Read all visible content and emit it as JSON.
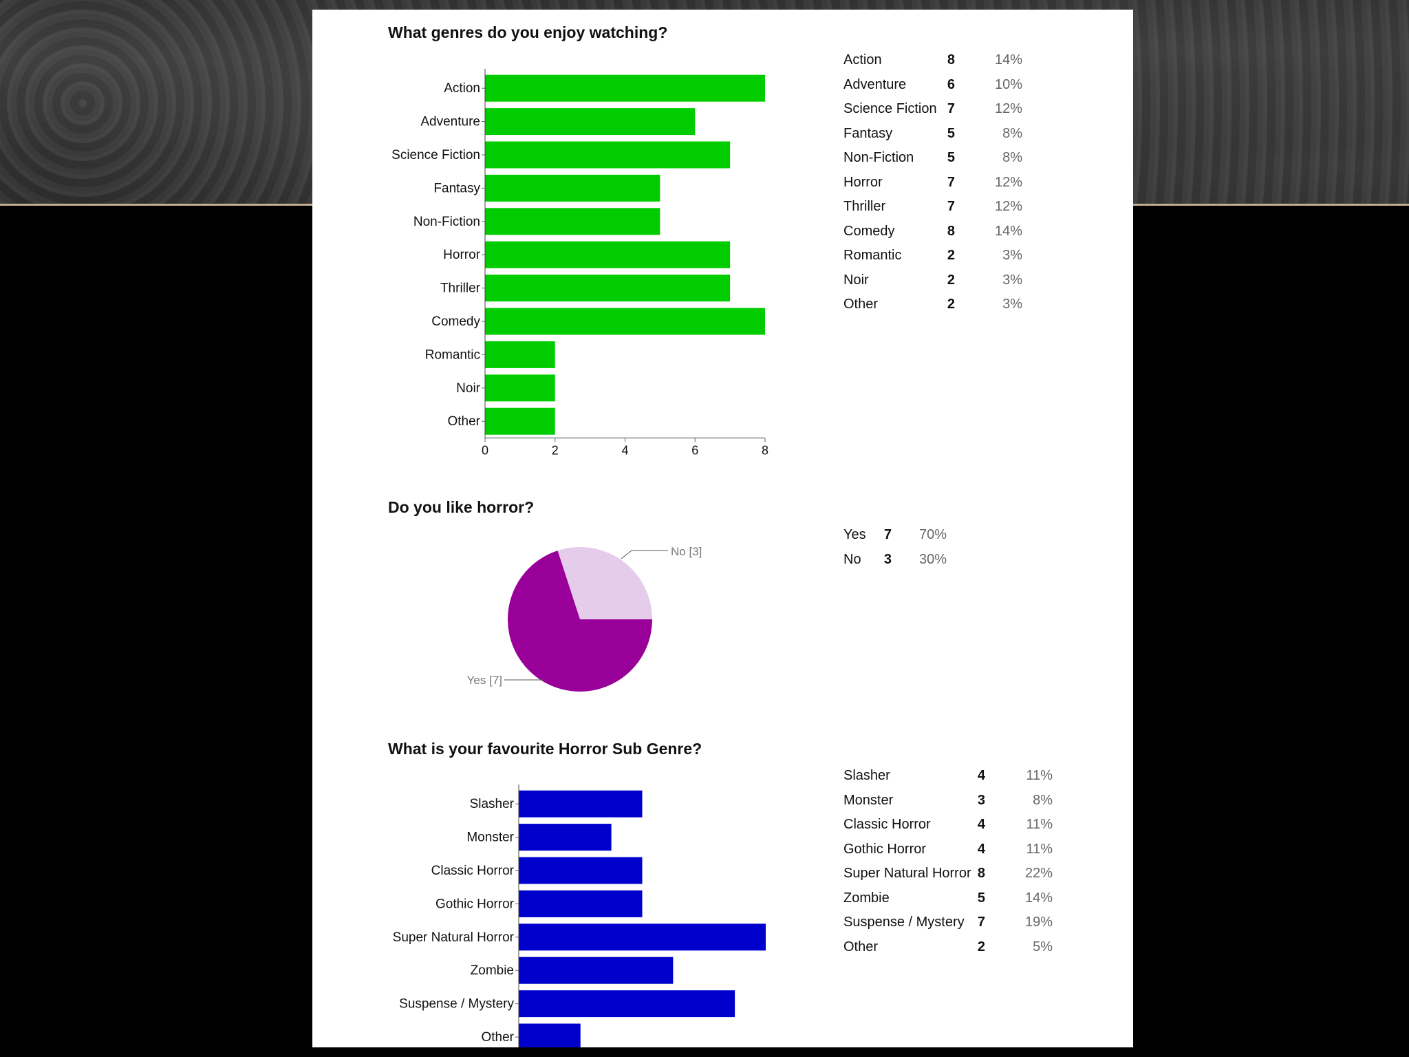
{
  "colors": {
    "genres_bar": "#00cc00",
    "horror_yes": "#990099",
    "horror_no": "#e6cceb",
    "subgenre_bar": "#0000cc"
  },
  "chart_data": [
    {
      "type": "bar",
      "orientation": "horizontal",
      "title": "What genres do you enjoy watching?",
      "categories": [
        "Action",
        "Adventure",
        "Science Fiction",
        "Fantasy",
        "Non-Fiction",
        "Horror",
        "Thriller",
        "Comedy",
        "Romantic",
        "Noir",
        "Other"
      ],
      "values": [
        8,
        6,
        7,
        5,
        5,
        7,
        7,
        8,
        2,
        2,
        2
      ],
      "xticks": [
        "0",
        "2",
        "4",
        "6",
        "8"
      ],
      "xlim": [
        0,
        8
      ],
      "summary": [
        {
          "label": "Action",
          "count": "8",
          "percent": "14%"
        },
        {
          "label": "Adventure",
          "count": "6",
          "percent": "10%"
        },
        {
          "label": "Science Fiction",
          "count": "7",
          "percent": "12%"
        },
        {
          "label": "Fantasy",
          "count": "5",
          "percent": "8%"
        },
        {
          "label": "Non-Fiction",
          "count": "5",
          "percent": "8%"
        },
        {
          "label": "Horror",
          "count": "7",
          "percent": "12%"
        },
        {
          "label": "Thriller",
          "count": "7",
          "percent": "12%"
        },
        {
          "label": "Comedy",
          "count": "8",
          "percent": "14%"
        },
        {
          "label": "Romantic",
          "count": "2",
          "percent": "3%"
        },
        {
          "label": "Noir",
          "count": "2",
          "percent": "3%"
        },
        {
          "label": "Other",
          "count": "2",
          "percent": "3%"
        }
      ]
    },
    {
      "type": "pie",
      "title": "Do you like horror?",
      "slices": [
        {
          "label": "Yes",
          "value": 7,
          "slice_label": "Yes [7]"
        },
        {
          "label": "No",
          "value": 3,
          "slice_label": "No [3]"
        }
      ],
      "summary": [
        {
          "label": "Yes",
          "count": "7",
          "percent": "70%"
        },
        {
          "label": "No",
          "count": "3",
          "percent": "30%"
        }
      ]
    },
    {
      "type": "bar",
      "orientation": "horizontal",
      "title": "What is your favourite Horror Sub Genre?",
      "categories": [
        "Slasher",
        "Monster",
        "Classic Horror",
        "Gothic Horror",
        "Super Natural Horror",
        "Zombie",
        "Suspense / Mystery",
        "Other"
      ],
      "values": [
        4,
        3,
        4,
        4,
        8,
        5,
        7,
        2
      ],
      "xlim": [
        0,
        8
      ],
      "summary": [
        {
          "label": "Slasher",
          "count": "4",
          "percent": "11%"
        },
        {
          "label": "Monster",
          "count": "3",
          "percent": "8%"
        },
        {
          "label": "Classic Horror",
          "count": "4",
          "percent": "11%"
        },
        {
          "label": "Gothic Horror",
          "count": "4",
          "percent": "11%"
        },
        {
          "label": "Super Natural Horror",
          "count": "8",
          "percent": "22%"
        },
        {
          "label": "Zombie",
          "count": "5",
          "percent": "14%"
        },
        {
          "label": "Suspense / Mystery",
          "count": "7",
          "percent": "19%"
        },
        {
          "label": "Other",
          "count": "2",
          "percent": "5%"
        }
      ]
    }
  ]
}
